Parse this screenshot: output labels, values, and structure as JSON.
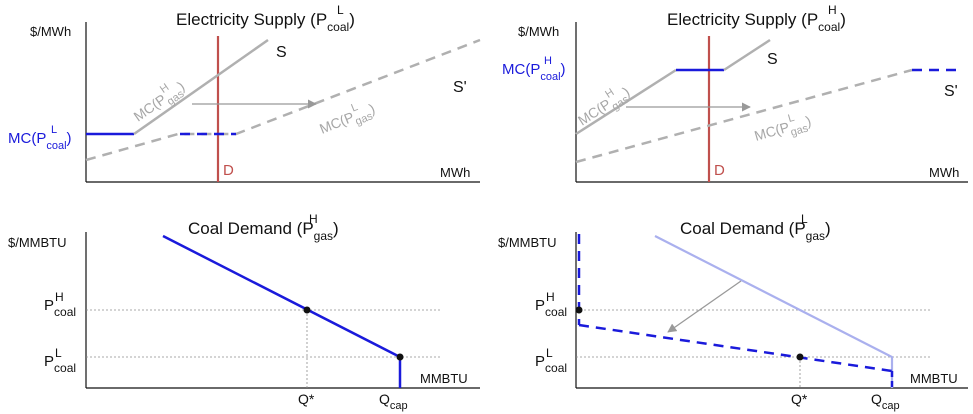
{
  "colors": {
    "blue": "#1a1adb",
    "gray": "#a6a6a6",
    "light_blue": "#aab0ee",
    "red": "#c0504d",
    "axis": "#111111",
    "grid": "#8c8c8c"
  },
  "top_left": {
    "title_main": "Electricity Supply (P",
    "title_sup": "L",
    "title_sub": "coal",
    "title_close": ")",
    "y_unit": "$/MWh",
    "x_unit": "MWh",
    "s_label": "S",
    "s_prime_label": "S'",
    "d_label": "D",
    "mc_coal_main": "MC(P",
    "mc_coal_sup": "L",
    "mc_coal_sub": "coal",
    "mc_coal_close": ")",
    "mc_gas_h_main": "MC(P",
    "mc_gas_h_sup": "H",
    "mc_gas_h_sub": "gas",
    "mc_gas_h_close": ")",
    "mc_gas_l_main": "MC(P",
    "mc_gas_l_sup": "L",
    "mc_gas_l_sub": "gas",
    "mc_gas_l_close": ")"
  },
  "top_right": {
    "title_main": "Electricity Supply (P",
    "title_sup": "H",
    "title_sub": "coal",
    "title_close": ")",
    "y_unit": "$/MWh",
    "x_unit": "MWh",
    "s_label": "S",
    "s_prime_label": "S'",
    "d_label": "D",
    "mc_coal_main": "MC(P",
    "mc_coal_sup": "H",
    "mc_coal_sub": "coal",
    "mc_coal_close": ")",
    "mc_gas_h_main": "MC(P",
    "mc_gas_h_sup": "H",
    "mc_gas_h_sub": "gas",
    "mc_gas_h_close": ")",
    "mc_gas_l_main": "MC(P",
    "mc_gas_l_sup": "L",
    "mc_gas_l_sub": "gas",
    "mc_gas_l_close": ")"
  },
  "bottom_left": {
    "title_main": "Coal Demand (P",
    "title_sup": "H",
    "title_sub": "gas",
    "title_close": ")",
    "y_unit": "$/MMBTU",
    "x_unit": "MMBTU",
    "p_high_main": "P",
    "p_high_sup": "H",
    "p_high_sub": "coal",
    "p_low_main": "P",
    "p_low_sup": "L",
    "p_low_sub": "coal",
    "q_star": "Q*",
    "q_cap_main": "Q",
    "q_cap_sub": "cap"
  },
  "bottom_right": {
    "title_main": "Coal Demand (P",
    "title_sup": "L",
    "title_sub": "gas",
    "title_close": ")",
    "y_unit": "$/MMBTU",
    "x_unit": "MMBTU",
    "p_high_main": "P",
    "p_high_sup": "H",
    "p_high_sub": "coal",
    "p_low_main": "P",
    "p_low_sup": "L",
    "p_low_sub": "coal",
    "q_star": "Q*",
    "q_cap_main": "Q",
    "q_cap_sub": "cap"
  }
}
